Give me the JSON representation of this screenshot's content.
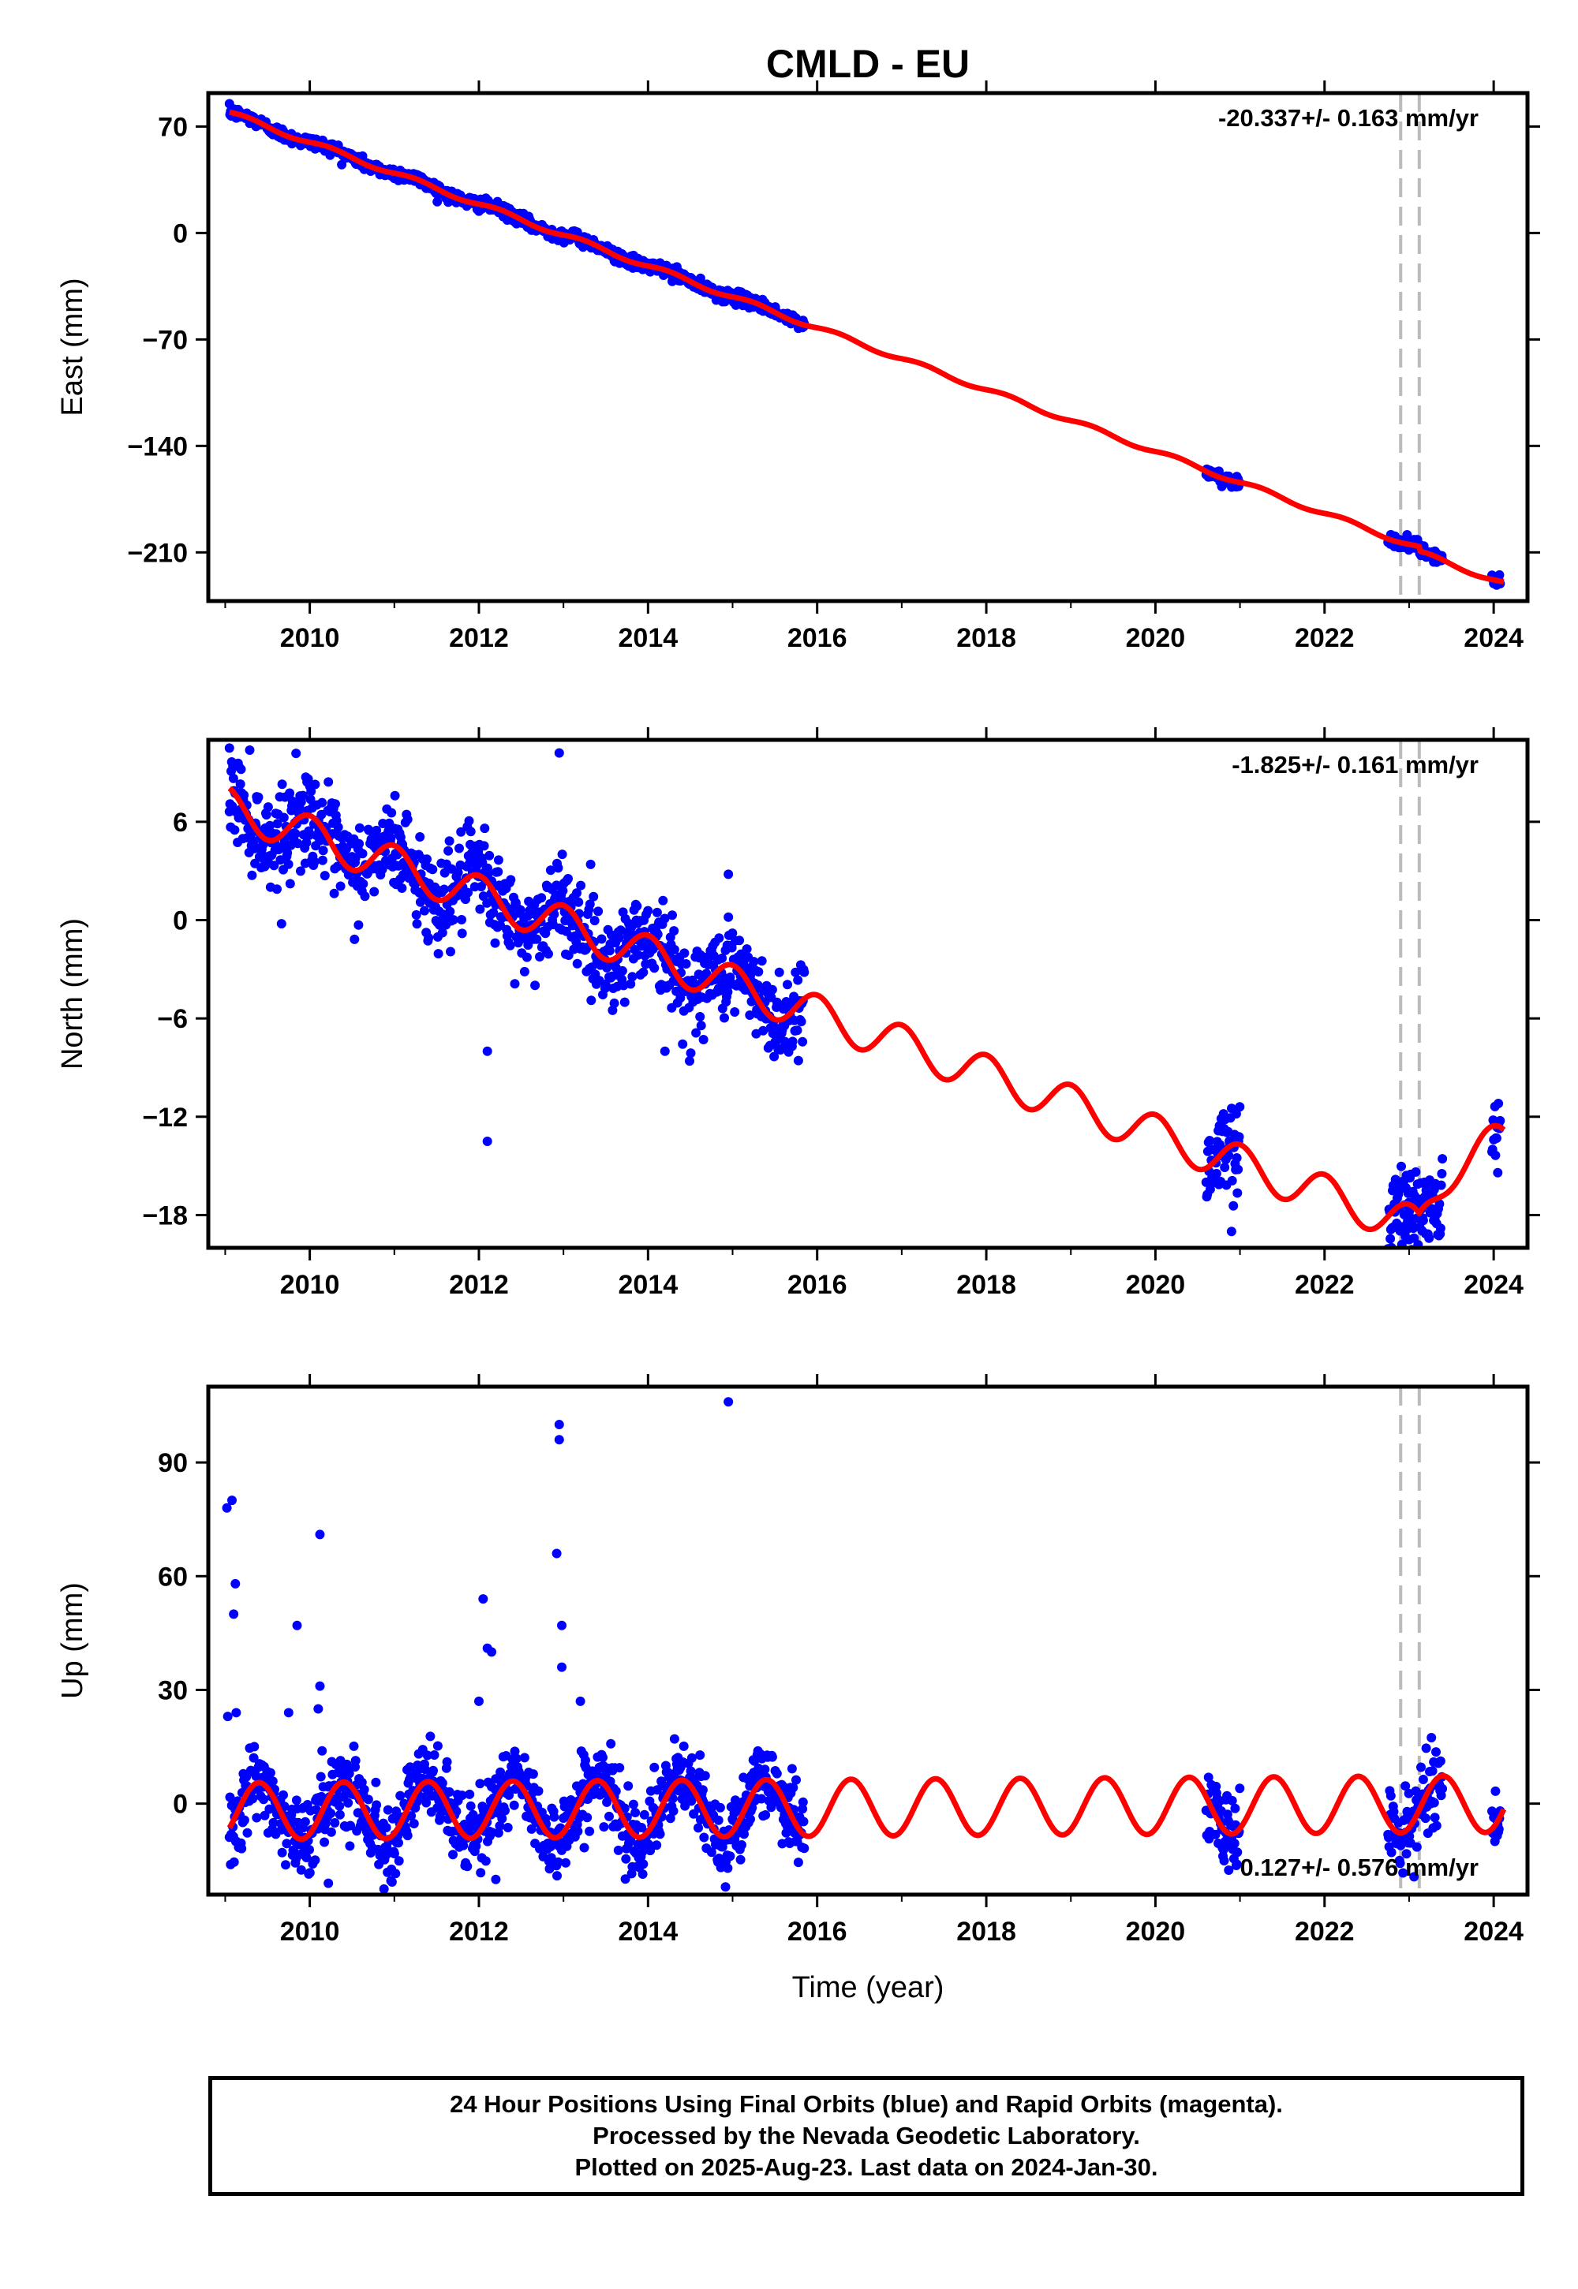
{
  "title": "CMLD - EU",
  "colors": {
    "data_points": "#0000ff",
    "model_line": "#ff0000",
    "event_lines": "#bbbbbb",
    "frame": "#000000"
  },
  "chart_data": [
    {
      "type": "scatter",
      "name": "east",
      "ylabel": "East (mm)",
      "xlabel": "",
      "xlim": [
        2008.8,
        2024.4
      ],
      "ylim": [
        -242,
        92
      ],
      "yticks": [
        "70",
        "0",
        "−70",
        "−140",
        "−210"
      ],
      "ytick_values": [
        70,
        0,
        -70,
        -140,
        -210
      ],
      "xticks": [
        "2010",
        "2012",
        "2014",
        "2016",
        "2018",
        "2020",
        "2022",
        "2024"
      ],
      "xtick_values": [
        2010,
        2012,
        2014,
        2016,
        2018,
        2020,
        2022,
        2024
      ],
      "velocity_label": "-20.337+/- 0.163 mm/yr",
      "velocity_position": "top-right",
      "event_lines_x": [
        2022.9,
        2023.12
      ],
      "model": {
        "trend_intercept_at_2009": 80,
        "trend_slope_per_year": -20.337,
        "annual_amplitude": 1.5,
        "annual_phase_year_fraction": 0.25,
        "offset_at_2023_12": -3
      },
      "observations": {
        "spans": [
          [
            2009.05,
            2015.85
          ],
          [
            2020.6,
            2021.0
          ],
          [
            2022.75,
            2023.4
          ],
          [
            2023.98,
            2024.08
          ]
        ],
        "scatter": 2.0
      }
    },
    {
      "type": "scatter",
      "name": "north",
      "ylabel": "North (mm)",
      "xlabel": "",
      "xlim": [
        2008.8,
        2024.4
      ],
      "ylim": [
        -20,
        11
      ],
      "yticks": [
        "6",
        "0",
        "−6",
        "−12",
        "−18"
      ],
      "ytick_values": [
        6,
        0,
        -6,
        -12,
        -18
      ],
      "xticks": [
        "2010",
        "2012",
        "2014",
        "2016",
        "2018",
        "2020",
        "2022",
        "2024"
      ],
      "xtick_values": [
        2010,
        2012,
        2014,
        2016,
        2018,
        2020,
        2022,
        2024
      ],
      "velocity_label": "-1.825+/- 0.161 mm/yr",
      "velocity_position": "top-right",
      "event_lines_x": [
        2022.9,
        2023.12
      ],
      "model": {
        "trend_intercept_at_2009": 7.0,
        "trend_slope_per_year": -1.825,
        "annual_amplitude": 1.2,
        "annual_phase_year_fraction": 0.0,
        "postseismic_after": 2023.12,
        "postseismic_total": 8.0,
        "postseismic_tau_years": 0.5
      },
      "observations": {
        "spans": [
          [
            2009.05,
            2015.85
          ],
          [
            2020.6,
            2021.0
          ],
          [
            2022.75,
            2023.4
          ],
          [
            2023.98,
            2024.08
          ]
        ],
        "scatter": 1.4
      },
      "outliers": [
        [
          2009.05,
          10.5
        ],
        [
          2012.1,
          -8.0
        ],
        [
          2012.1,
          -13.5
        ],
        [
          2012.95,
          10.2
        ],
        [
          2014.95,
          2.8
        ],
        [
          2014.2,
          -8.0
        ],
        [
          2020.9,
          -19.0
        ],
        [
          2023.0,
          -19.5
        ]
      ]
    },
    {
      "type": "scatter",
      "name": "up",
      "ylabel": "Up (mm)",
      "xlabel": "Time (year)",
      "xlim": [
        2008.8,
        2024.4
      ],
      "ylim": [
        -24,
        110
      ],
      "yticks": [
        "90",
        "60",
        "30",
        "0"
      ],
      "ytick_values": [
        90,
        60,
        30,
        0
      ],
      "xticks": [
        "2010",
        "2012",
        "2014",
        "2016",
        "2018",
        "2020",
        "2022",
        "2024"
      ],
      "xtick_values": [
        2010,
        2012,
        2014,
        2016,
        2018,
        2020,
        2022,
        2024
      ],
      "velocity_label": "0.127+/- 0.576 mm/yr",
      "velocity_position": "bottom-right",
      "event_lines_x": [
        2022.9,
        2023.12
      ],
      "model": {
        "trend_intercept_at_2009": -2.0,
        "trend_slope_per_year": 0.127,
        "annual_amplitude": 7.5,
        "annual_phase_year_fraction": 0.4
      },
      "observations": {
        "spans": [
          [
            2009.05,
            2015.85
          ],
          [
            2020.6,
            2021.0
          ],
          [
            2022.75,
            2023.4
          ],
          [
            2023.98,
            2024.08
          ]
        ],
        "scatter": 5.0
      },
      "outliers": [
        [
          2009.02,
          78
        ],
        [
          2009.08,
          80
        ],
        [
          2009.12,
          58
        ],
        [
          2009.1,
          50
        ],
        [
          2009.03,
          23
        ],
        [
          2009.13,
          24
        ],
        [
          2009.85,
          47
        ],
        [
          2010.12,
          71
        ],
        [
          2010.12,
          31
        ],
        [
          2010.1,
          25
        ],
        [
          2012.05,
          54
        ],
        [
          2012.1,
          41
        ],
        [
          2012.15,
          40
        ],
        [
          2012.0,
          27
        ],
        [
          2012.95,
          100
        ],
        [
          2012.95,
          96
        ],
        [
          2012.92,
          66
        ],
        [
          2012.98,
          47
        ],
        [
          2012.98,
          36
        ],
        [
          2013.2,
          27
        ],
        [
          2014.95,
          106
        ],
        [
          2009.75,
          24
        ],
        [
          2010.22,
          -21
        ],
        [
          2012.2,
          -20
        ]
      ]
    }
  ],
  "footer": {
    "line1": "24 Hour Positions Using Final Orbits (blue) and Rapid Orbits (magenta).",
    "line2": "Processed by the Nevada Geodetic Laboratory.",
    "line3": "Plotted on 2025-Aug-23. Last data on 2024-Jan-30."
  }
}
